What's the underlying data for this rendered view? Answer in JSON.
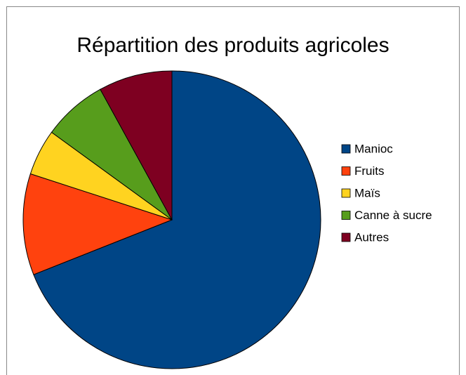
{
  "chart_data": {
    "type": "pie",
    "title": "Répartition des produits agricoles",
    "categories": [
      "Manioc",
      "Fruits",
      "Maïs",
      "Canne à sucre",
      "Autres"
    ],
    "values": [
      69,
      11,
      5,
      7,
      8
    ],
    "colors": [
      "#004586",
      "#ff420e",
      "#ffd320",
      "#579d1c",
      "#7e0021"
    ],
    "legend": "right"
  }
}
